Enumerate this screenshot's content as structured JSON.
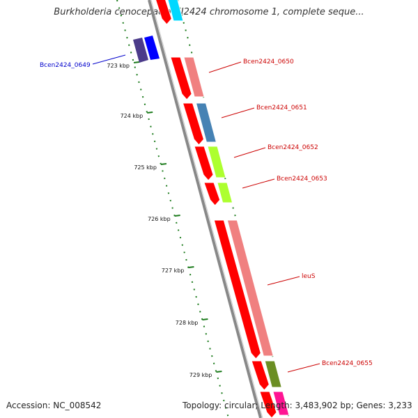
{
  "title": "Burkholderia cenocepacia HI2424 chromosome 1, complete seque...",
  "footer": {
    "accession": "Accession: NC_008542",
    "summary": "Topology: circular; Length: 3,483,902 bp; Genes: 3,233"
  },
  "ruler": [
    "723 kbp",
    "724 kbp",
    "725 kbp",
    "726 kbp",
    "727 kbp",
    "728 kbp",
    "729 kbp"
  ],
  "genes": [
    {
      "label": "Bcen2424_0649",
      "color": "#0000cc"
    },
    {
      "label": "Bcen2424_0650",
      "color": "#cc0000"
    },
    {
      "label": "Bcen2424_0651",
      "color": "#cc0000"
    },
    {
      "label": "Bcen2424_0652",
      "color": "#cc0000"
    },
    {
      "label": "Bcen2424_0653",
      "color": "#cc0000"
    },
    {
      "label": "leuS",
      "color": "#cc0000"
    },
    {
      "label": "Bcen2424_0655",
      "color": "#cc0000"
    }
  ],
  "colors": {
    "backbone": "#888888",
    "ruler": "#1a7a1a",
    "cds": "#ff0000",
    "cds_light": "#f08080",
    "dark_purple": "#4b3b8a",
    "blue": "#0000ff",
    "steel_blue": "#4682b4",
    "green_yellow": "#adff2f",
    "olive": "#6b8e23",
    "magenta": "#ff1493",
    "cyan": "#00d8ff"
  }
}
